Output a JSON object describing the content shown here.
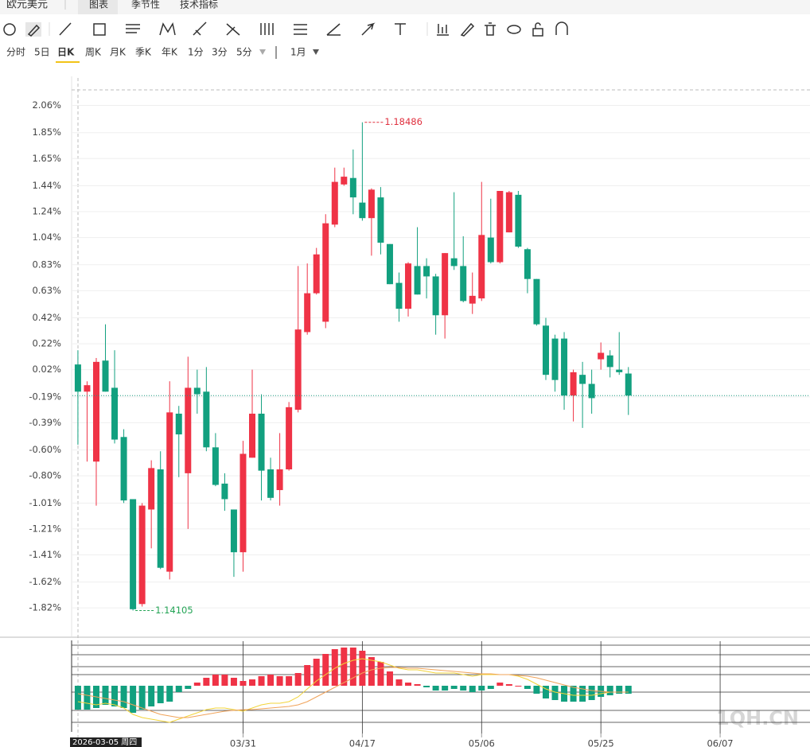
{
  "header": {
    "title": "欧元美元",
    "tabs": [
      "图表",
      "季节性",
      "技术指标"
    ]
  },
  "periods": [
    "分时",
    "5日",
    "日K",
    "周K",
    "月K",
    "季K",
    "年K",
    "1分",
    "3分",
    "5分"
  ],
  "range": "1月",
  "watermark": "1QH.CN",
  "cursor_label": "2026-03-05 周四",
  "chart_data": {
    "type": "candlestick",
    "up_color": "#ef3346",
    "down_color": "#12a07f",
    "xlim": [
      -0.6,
      79.1
    ],
    "ylim": [
      -2.04,
      2.26
    ],
    "yticks": [
      {
        "value": 2.06,
        "label": "2.06%"
      },
      {
        "value": 1.85,
        "label": "1.85%"
      },
      {
        "value": 1.65,
        "label": "1.65%"
      },
      {
        "value": 1.44,
        "label": "1.44%"
      },
      {
        "value": 1.24,
        "label": "1.24%"
      },
      {
        "value": 1.04,
        "label": "1.04%"
      },
      {
        "value": 0.83,
        "label": "0.83%"
      },
      {
        "value": 0.63,
        "label": "0.63%"
      },
      {
        "value": 0.42,
        "label": "0.42%"
      },
      {
        "value": 0.22,
        "label": "0.22%"
      },
      {
        "value": 0.02,
        "label": "0.02%"
      },
      {
        "value": -0.19,
        "label": "-0.19%"
      },
      {
        "value": -0.39,
        "label": "-0.39%"
      },
      {
        "value": -0.6,
        "label": "-0.60%"
      },
      {
        "value": -0.8,
        "label": "-0.80%"
      },
      {
        "value": -1.01,
        "label": "-1.01%"
      },
      {
        "value": -1.21,
        "label": "-1.21%"
      },
      {
        "value": -1.41,
        "label": "-1.41%"
      },
      {
        "value": -1.62,
        "label": "-1.62%"
      },
      {
        "value": -1.82,
        "label": "-1.82%"
      }
    ],
    "xticks": [
      {
        "value": 18,
        "label": "03/31"
      },
      {
        "value": 31,
        "label": "04/17"
      },
      {
        "value": 44,
        "label": "05/06"
      },
      {
        "value": 57,
        "label": "05/25"
      },
      {
        "value": 70,
        "label": "06/07"
      }
    ],
    "open": [
      0.06,
      -0.15,
      -0.69,
      0.09,
      -0.12,
      -0.5,
      -0.98,
      -1.79,
      -1.06,
      -0.75,
      -1.54,
      -0.32,
      -0.78,
      -0.12,
      -0.15,
      -0.58,
      -0.86,
      -1.06,
      -1.39,
      -0.66,
      -0.32,
      -0.75,
      -0.91,
      -0.75,
      -0.29,
      0.31,
      0.61,
      0.39,
      1.14,
      1.45,
      1.5,
      1.31,
      1.19,
      1.35,
      0.99,
      0.69,
      0.49,
      0.82,
      0.82,
      0.74,
      0.44,
      0.88,
      0.82,
      0.53,
      0.57,
      1.04,
      0.85,
      1.08,
      1.37,
      0.95,
      0.72,
      0.36,
      0.26,
      0.26,
      -0.18,
      -0.02,
      -0.09,
      0.1,
      0.13,
      0.02,
      -0.01
    ],
    "high": [
      0.17,
      -0.07,
      0.11,
      0.37,
      0.17,
      -0.44,
      -0.98,
      -1.01,
      -0.68,
      -0.61,
      -0.07,
      -0.26,
      0.12,
      0.02,
      0.04,
      -0.47,
      -0.78,
      -1.06,
      -0.53,
      0.02,
      -0.17,
      -0.66,
      -0.47,
      -0.23,
      0.82,
      0.84,
      0.96,
      1.22,
      1.58,
      1.58,
      1.72,
      1.93,
      1.42,
      1.43,
      0.99,
      0.77,
      0.85,
      1.12,
      0.88,
      0.76,
      0.92,
      1.39,
      1.05,
      0.77,
      1.47,
      1.34,
      1.4,
      1.4,
      1.4,
      0.96,
      0.72,
      0.42,
      0.29,
      0.31,
      0.02,
      0.08,
      0.02,
      0.23,
      0.17,
      0.31,
      0.04
    ],
    "low": [
      -0.56,
      -0.69,
      -1.03,
      -0.15,
      -0.55,
      -1.01,
      -1.84,
      -1.81,
      -1.36,
      -1.52,
      -1.6,
      -0.81,
      -1.21,
      -0.32,
      -0.61,
      -0.88,
      -1.07,
      -1.58,
      -1.54,
      -0.66,
      -0.99,
      -0.99,
      -1.03,
      -0.76,
      -0.31,
      0.29,
      0.6,
      0.34,
      1.12,
      1.44,
      1.22,
      1.17,
      0.9,
      0.91,
      0.68,
      0.39,
      0.43,
      0.6,
      0.57,
      0.29,
      0.26,
      0.79,
      0.54,
      0.45,
      0.55,
      0.84,
      0.84,
      1.08,
      0.96,
      0.61,
      0.36,
      -0.06,
      -0.15,
      -0.29,
      -0.38,
      -0.43,
      -0.32,
      0.02,
      -0.04,
      -0.02,
      -0.33
    ],
    "close": [
      -0.15,
      -0.1,
      0.08,
      -0.15,
      -0.52,
      -0.99,
      -1.83,
      -1.03,
      -0.74,
      -1.51,
      -0.31,
      -0.48,
      -0.12,
      -0.17,
      -0.58,
      -0.87,
      -0.98,
      -1.39,
      -0.63,
      -0.32,
      -0.76,
      -0.97,
      -0.75,
      -0.27,
      0.33,
      0.61,
      0.91,
      1.15,
      1.47,
      1.51,
      1.35,
      1.19,
      1.41,
      1.0,
      0.68,
      0.49,
      0.84,
      0.6,
      0.74,
      0.44,
      0.92,
      0.82,
      0.55,
      0.59,
      1.06,
      0.85,
      1.4,
      1.39,
      0.97,
      0.72,
      0.37,
      -0.02,
      -0.06,
      -0.18,
      0.0,
      -0.09,
      -0.2,
      0.15,
      0.04,
      0.0,
      -0.18
    ],
    "annotations": [
      {
        "text": "1.18486",
        "index": 31,
        "at": "high",
        "color": "#e0313f"
      },
      {
        "text": "1.14105",
        "index": 6,
        "at": "low",
        "color": "#23a455"
      }
    ],
    "last_line_color": "#1a9a80",
    "macd": {
      "ylim": [
        -58,
        52
      ],
      "hist": [
        -30,
        -30,
        -28,
        -24,
        -26,
        -28,
        -34,
        -30,
        -26,
        -22,
        -20,
        -8,
        -4,
        4,
        10,
        14,
        14,
        10,
        6,
        8,
        12,
        14,
        12,
        12,
        16,
        26,
        34,
        40,
        46,
        48,
        48,
        44,
        36,
        30,
        18,
        8,
        4,
        2,
        -2,
        -6,
        -6,
        -4,
        -6,
        -8,
        -6,
        -4,
        4,
        2,
        0,
        -4,
        -10,
        -16,
        -18,
        -20,
        -20,
        -20,
        -18,
        -14,
        -12,
        -10,
        -10
      ],
      "dif": {
        "color": "#f2d43a",
        "values": [
          -20,
          -22,
          -24,
          -22,
          -24,
          -28,
          -36,
          -40,
          -42,
          -44,
          -46,
          -42,
          -38,
          -34,
          -30,
          -28,
          -28,
          -30,
          -32,
          -28,
          -24,
          -22,
          -22,
          -20,
          -14,
          -4,
          6,
          14,
          22,
          28,
          32,
          34,
          32,
          30,
          26,
          22,
          20,
          20,
          18,
          16,
          16,
          16,
          14,
          12,
          14,
          14,
          14,
          14,
          12,
          8,
          2,
          -4,
          -8,
          -10,
          -12,
          -12,
          -12,
          -10,
          -8,
          -8,
          -8
        ]
      },
      "dea": {
        "color": "#f0a35a",
        "values": [
          -10,
          -12,
          -14,
          -16,
          -18,
          -20,
          -24,
          -28,
          -32,
          -36,
          -38,
          -40,
          -40,
          -38,
          -36,
          -34,
          -32,
          -31,
          -30,
          -30,
          -29,
          -28,
          -27,
          -26,
          -24,
          -20,
          -14,
          -8,
          -2,
          4,
          10,
          16,
          20,
          22,
          23,
          23,
          22,
          22,
          21,
          20,
          19,
          18,
          17,
          16,
          15,
          15,
          14,
          14,
          13,
          12,
          10,
          7,
          4,
          1,
          -2,
          -4,
          -6,
          -7,
          -8,
          -8,
          -8
        ]
      }
    }
  }
}
